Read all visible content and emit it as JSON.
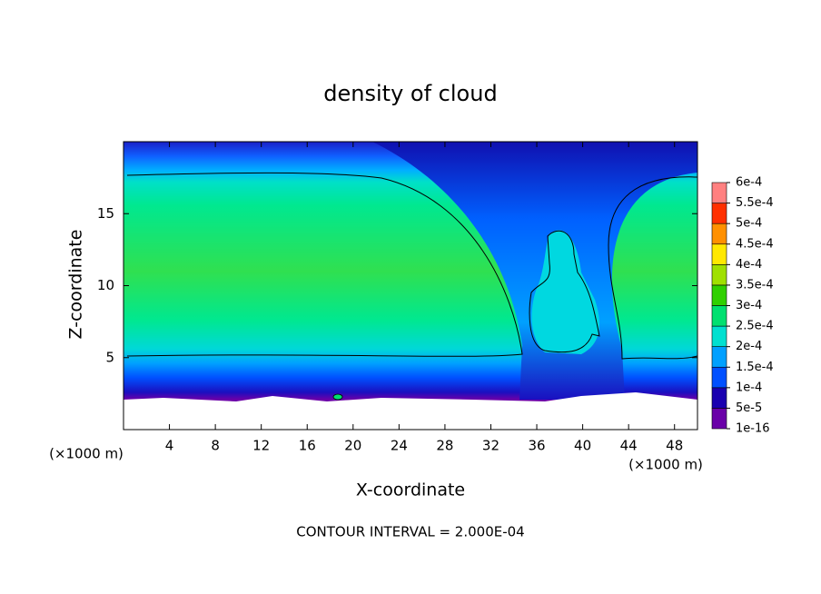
{
  "chart_data": {
    "type": "contour",
    "title": "density of cloud",
    "xlabel": "X-coordinate",
    "ylabel": "Z-coordinate",
    "x_unit_left": "(×1000 m)",
    "x_unit_right": "(×1000 m)",
    "xlim": [
      0,
      50
    ],
    "xticks": [
      4,
      8,
      12,
      16,
      20,
      24,
      28,
      32,
      36,
      40,
      44,
      48
    ],
    "ylim": [
      0,
      20
    ],
    "yticks": [
      5,
      10,
      15
    ],
    "colorbar": {
      "ticks": [
        {
          "value": 1e-16,
          "label": "1e-16"
        },
        {
          "value": 5e-05,
          "label": "5e-5"
        },
        {
          "value": 0.0001,
          "label": "1e-4"
        },
        {
          "value": 0.00015,
          "label": "1.5e-4"
        },
        {
          "value": 0.0002,
          "label": "2e-4"
        },
        {
          "value": 0.00025,
          "label": "2.5e-4"
        },
        {
          "value": 0.0003,
          "label": "3e-4"
        },
        {
          "value": 0.00035,
          "label": "3.5e-4"
        },
        {
          "value": 0.0004,
          "label": "4e-4"
        },
        {
          "value": 0.00045,
          "label": "4.5e-4"
        },
        {
          "value": 0.0005,
          "label": "5e-4"
        },
        {
          "value": 0.00055,
          "label": "5.5e-4"
        },
        {
          "value": 0.0006,
          "label": "6e-4"
        }
      ],
      "colors": [
        "#6a00a8",
        "#1a00b0",
        "#0050ff",
        "#00a0ff",
        "#00e0d0",
        "#00e070",
        "#30d000",
        "#a0e000",
        "#ffe800",
        "#ff9000",
        "#ff3000",
        "#ff8080"
      ]
    },
    "annotation": "CONTOUR INTERVAL = 2.000E-04"
  }
}
